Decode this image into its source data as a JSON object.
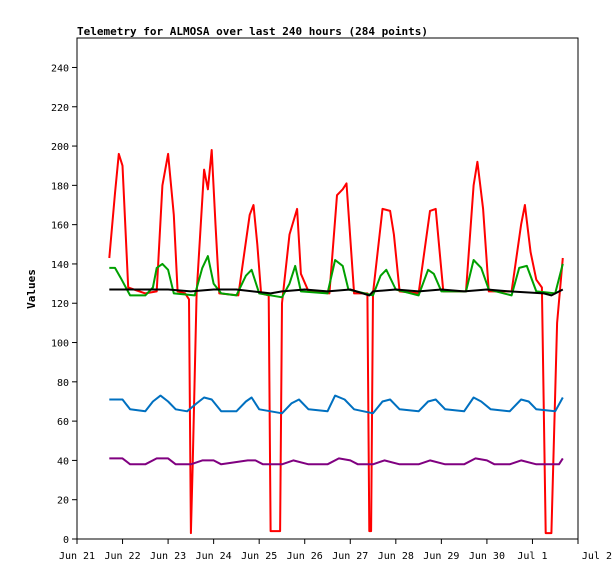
{
  "chart_data": {
    "type": "line",
    "title": "Telemetry for ALMOSA over last 240 hours (284 points)",
    "xlabel": "",
    "ylabel": "Values",
    "x_range": [
      "2025-06-21",
      "2025-07-02"
    ],
    "x_ticks": [
      "Jun 21",
      "Jun 22",
      "Jun 23",
      "Jun 24",
      "Jun 25",
      "Jun 26",
      "Jun 27",
      "Jun 28",
      "Jun 29",
      "Jun 30",
      "Jul 1",
      "Jul 2"
    ],
    "ylim": [
      0,
      255
    ],
    "y_ticks": [
      0,
      20,
      40,
      60,
      80,
      100,
      120,
      140,
      160,
      180,
      200,
      220,
      240
    ],
    "grid": false,
    "legend": "none",
    "series": [
      {
        "color": "#ff0000",
        "points": [
          [
            "2025-06-21 17:00",
            143
          ],
          [
            "2025-06-21 20:00",
            176
          ],
          [
            "2025-06-21 22:00",
            196
          ],
          [
            "2025-06-22 00:00",
            190
          ],
          [
            "2025-06-22 03:00",
            128
          ],
          [
            "2025-06-22 12:00",
            125
          ],
          [
            "2025-06-22 18:00",
            126
          ],
          [
            "2025-06-22 21:00",
            180
          ],
          [
            "2025-06-23 00:00",
            196
          ],
          [
            "2025-06-23 03:00",
            165
          ],
          [
            "2025-06-23 05:00",
            126
          ],
          [
            "2025-06-23 09:00",
            125
          ],
          [
            "2025-06-23 11:00",
            122
          ],
          [
            "2025-06-23 12:00",
            3
          ],
          [
            "2025-06-23 13:00",
            40
          ],
          [
            "2025-06-23 15:00",
            125
          ],
          [
            "2025-06-23 19:00",
            188
          ],
          [
            "2025-06-23 21:00",
            178
          ],
          [
            "2025-06-23 23:00",
            198
          ],
          [
            "2025-06-24 01:00",
            160
          ],
          [
            "2025-06-24 03:00",
            125
          ],
          [
            "2025-06-24 13:00",
            124
          ],
          [
            "2025-06-24 19:00",
            165
          ],
          [
            "2025-06-24 21:00",
            170
          ],
          [
            "2025-06-24 23:00",
            150
          ],
          [
            "2025-06-25 01:00",
            125
          ],
          [
            "2025-06-25 05:00",
            124
          ],
          [
            "2025-06-25 06:00",
            4
          ],
          [
            "2025-06-25 11:00",
            4
          ],
          [
            "2025-06-25 12:00",
            120
          ],
          [
            "2025-06-25 16:00",
            155
          ],
          [
            "2025-06-25 20:00",
            168
          ],
          [
            "2025-06-25 22:00",
            135
          ],
          [
            "2025-06-26 02:00",
            126
          ],
          [
            "2025-06-26 13:00",
            125
          ],
          [
            "2025-06-26 17:00",
            175
          ],
          [
            "2025-06-26 20:00",
            178
          ],
          [
            "2025-06-26 22:00",
            181
          ],
          [
            "2025-06-27 02:00",
            125
          ],
          [
            "2025-06-27 09:00",
            125
          ],
          [
            "2025-06-27 10:00",
            4
          ],
          [
            "2025-06-27 11:00",
            4
          ],
          [
            "2025-06-27 12:00",
            125
          ],
          [
            "2025-06-27 17:00",
            168
          ],
          [
            "2025-06-27 21:00",
            167
          ],
          [
            "2025-06-27 23:00",
            155
          ],
          [
            "2025-06-28 02:00",
            126
          ],
          [
            "2025-06-28 12:00",
            125
          ],
          [
            "2025-06-28 18:00",
            167
          ],
          [
            "2025-06-28 21:00",
            168
          ],
          [
            "2025-06-29 01:00",
            126
          ],
          [
            "2025-06-29 13:00",
            126
          ],
          [
            "2025-06-29 17:00",
            180
          ],
          [
            "2025-06-29 19:00",
            192
          ],
          [
            "2025-06-29 22:00",
            168
          ],
          [
            "2025-06-30 01:00",
            126
          ],
          [
            "2025-06-30 13:00",
            126
          ],
          [
            "2025-06-30 18:00",
            160
          ],
          [
            "2025-06-30 20:00",
            170
          ],
          [
            "2025-06-30 23:00",
            146
          ],
          [
            "2025-07-01 02:00",
            132
          ],
          [
            "2025-07-01 05:00",
            128
          ],
          [
            "2025-07-01 07:00",
            3
          ],
          [
            "2025-07-01 10:00",
            3
          ],
          [
            "2025-07-01 13:00",
            110
          ],
          [
            "2025-07-01 16:00",
            143
          ]
        ]
      },
      {
        "color": "#00a000",
        "points": [
          [
            "2025-06-21 17:00",
            138
          ],
          [
            "2025-06-21 20:00",
            138
          ],
          [
            "2025-06-21 23:00",
            133
          ],
          [
            "2025-06-22 04:00",
            124
          ],
          [
            "2025-06-22 12:00",
            124
          ],
          [
            "2025-06-22 16:00",
            128
          ],
          [
            "2025-06-22 18:00",
            138
          ],
          [
            "2025-06-22 21:00",
            140
          ],
          [
            "2025-06-23 00:00",
            137
          ],
          [
            "2025-06-23 03:00",
            125
          ],
          [
            "2025-06-23 14:00",
            124
          ],
          [
            "2025-06-23 18:00",
            138
          ],
          [
            "2025-06-23 21:00",
            144
          ],
          [
            "2025-06-24 00:00",
            130
          ],
          [
            "2025-06-24 04:00",
            125
          ],
          [
            "2025-06-24 12:00",
            124
          ],
          [
            "2025-06-24 17:00",
            134
          ],
          [
            "2025-06-24 20:00",
            137
          ],
          [
            "2025-06-25 00:00",
            125
          ],
          [
            "2025-06-25 12:00",
            123
          ],
          [
            "2025-06-25 16:00",
            130
          ],
          [
            "2025-06-25 19:00",
            139
          ],
          [
            "2025-06-25 22:00",
            126
          ],
          [
            "2025-06-26 12:00",
            125
          ],
          [
            "2025-06-26 16:00",
            142
          ],
          [
            "2025-06-26 20:00",
            139
          ],
          [
            "2025-06-26 23:00",
            127
          ],
          [
            "2025-06-27 12:00",
            124
          ],
          [
            "2025-06-27 16:00",
            134
          ],
          [
            "2025-06-27 19:00",
            137
          ],
          [
            "2025-06-28 00:00",
            127
          ],
          [
            "2025-06-28 12:00",
            124
          ],
          [
            "2025-06-28 17:00",
            137
          ],
          [
            "2025-06-28 20:00",
            135
          ],
          [
            "2025-06-29 00:00",
            126
          ],
          [
            "2025-06-29 13:00",
            126
          ],
          [
            "2025-06-29 17:00",
            142
          ],
          [
            "2025-06-29 21:00",
            138
          ],
          [
            "2025-06-30 01:00",
            127
          ],
          [
            "2025-06-30 13:00",
            124
          ],
          [
            "2025-06-30 17:00",
            138
          ],
          [
            "2025-06-30 21:00",
            139
          ],
          [
            "2025-07-01 02:00",
            126
          ],
          [
            "2025-07-01 12:00",
            125
          ],
          [
            "2025-07-01 16:00",
            140
          ]
        ]
      },
      {
        "color": "#000000",
        "points": [
          [
            "2025-06-21 17:00",
            127
          ],
          [
            "2025-06-22 12:00",
            127
          ],
          [
            "2025-06-23 00:00",
            127
          ],
          [
            "2025-06-23 12:00",
            126
          ],
          [
            "2025-06-24 00:00",
            127
          ],
          [
            "2025-06-24 12:00",
            127
          ],
          [
            "2025-06-25 06:00",
            125
          ],
          [
            "2025-06-25 12:00",
            126
          ],
          [
            "2025-06-26 00:00",
            127
          ],
          [
            "2025-06-26 12:00",
            126
          ],
          [
            "2025-06-27 00:00",
            127
          ],
          [
            "2025-06-27 10:00",
            124
          ],
          [
            "2025-06-27 12:00",
            126
          ],
          [
            "2025-06-28 00:00",
            127
          ],
          [
            "2025-06-28 12:00",
            126
          ],
          [
            "2025-06-29 00:00",
            127
          ],
          [
            "2025-06-29 12:00",
            126
          ],
          [
            "2025-06-30 00:00",
            127
          ],
          [
            "2025-06-30 12:00",
            126
          ],
          [
            "2025-07-01 06:00",
            125
          ],
          [
            "2025-07-01 10:00",
            124
          ],
          [
            "2025-07-01 16:00",
            127
          ]
        ]
      },
      {
        "color": "#0070c0",
        "points": [
          [
            "2025-06-21 17:00",
            71
          ],
          [
            "2025-06-22 00:00",
            71
          ],
          [
            "2025-06-22 04:00",
            66
          ],
          [
            "2025-06-22 12:00",
            65
          ],
          [
            "2025-06-22 16:00",
            70
          ],
          [
            "2025-06-22 20:00",
            73
          ],
          [
            "2025-06-23 00:00",
            70
          ],
          [
            "2025-06-23 04:00",
            66
          ],
          [
            "2025-06-23 10:00",
            65
          ],
          [
            "2025-06-23 15:00",
            69
          ],
          [
            "2025-06-23 19:00",
            72
          ],
          [
            "2025-06-23 23:00",
            71
          ],
          [
            "2025-06-24 04:00",
            65
          ],
          [
            "2025-06-24 12:00",
            65
          ],
          [
            "2025-06-24 17:00",
            70
          ],
          [
            "2025-06-24 20:00",
            72
          ],
          [
            "2025-06-25 00:00",
            66
          ],
          [
            "2025-06-25 12:00",
            64
          ],
          [
            "2025-06-25 17:00",
            69
          ],
          [
            "2025-06-25 21:00",
            71
          ],
          [
            "2025-06-26 02:00",
            66
          ],
          [
            "2025-06-26 12:00",
            65
          ],
          [
            "2025-06-26 16:00",
            73
          ],
          [
            "2025-06-26 21:00",
            71
          ],
          [
            "2025-06-27 02:00",
            66
          ],
          [
            "2025-06-27 12:00",
            64
          ],
          [
            "2025-06-27 17:00",
            70
          ],
          [
            "2025-06-27 21:00",
            71
          ],
          [
            "2025-06-28 02:00",
            66
          ],
          [
            "2025-06-28 12:00",
            65
          ],
          [
            "2025-06-28 17:00",
            70
          ],
          [
            "2025-06-28 21:00",
            71
          ],
          [
            "2025-06-29 02:00",
            66
          ],
          [
            "2025-06-29 12:00",
            65
          ],
          [
            "2025-06-29 17:00",
            72
          ],
          [
            "2025-06-29 21:00",
            70
          ],
          [
            "2025-06-30 02:00",
            66
          ],
          [
            "2025-06-30 12:00",
            65
          ],
          [
            "2025-06-30 18:00",
            71
          ],
          [
            "2025-06-30 22:00",
            70
          ],
          [
            "2025-07-01 02:00",
            66
          ],
          [
            "2025-07-01 12:00",
            65
          ],
          [
            "2025-07-01 16:00",
            72
          ]
        ]
      },
      {
        "color": "#800080",
        "points": [
          [
            "2025-06-21 17:00",
            41
          ],
          [
            "2025-06-22 00:00",
            41
          ],
          [
            "2025-06-22 04:00",
            38
          ],
          [
            "2025-06-22 12:00",
            38
          ],
          [
            "2025-06-22 18:00",
            41
          ],
          [
            "2025-06-23 00:00",
            41
          ],
          [
            "2025-06-23 04:00",
            38
          ],
          [
            "2025-06-23 12:00",
            38
          ],
          [
            "2025-06-23 18:00",
            40
          ],
          [
            "2025-06-24 00:00",
            40
          ],
          [
            "2025-06-24 04:00",
            38
          ],
          [
            "2025-06-24 18:00",
            40
          ],
          [
            "2025-06-24 22:00",
            40
          ],
          [
            "2025-06-25 02:00",
            38
          ],
          [
            "2025-06-25 12:00",
            38
          ],
          [
            "2025-06-25 18:00",
            40
          ],
          [
            "2025-06-26 02:00",
            38
          ],
          [
            "2025-06-26 12:00",
            38
          ],
          [
            "2025-06-26 18:00",
            41
          ],
          [
            "2025-06-27 00:00",
            40
          ],
          [
            "2025-06-27 04:00",
            38
          ],
          [
            "2025-06-27 12:00",
            38
          ],
          [
            "2025-06-27 18:00",
            40
          ],
          [
            "2025-06-28 02:00",
            38
          ],
          [
            "2025-06-28 12:00",
            38
          ],
          [
            "2025-06-28 18:00",
            40
          ],
          [
            "2025-06-29 02:00",
            38
          ],
          [
            "2025-06-29 12:00",
            38
          ],
          [
            "2025-06-29 18:00",
            41
          ],
          [
            "2025-06-30 00:00",
            40
          ],
          [
            "2025-06-30 04:00",
            38
          ],
          [
            "2025-06-30 12:00",
            38
          ],
          [
            "2025-06-30 18:00",
            40
          ],
          [
            "2025-07-01 02:00",
            38
          ],
          [
            "2025-07-01 14:00",
            38
          ],
          [
            "2025-07-01 16:00",
            41
          ]
        ]
      }
    ]
  }
}
